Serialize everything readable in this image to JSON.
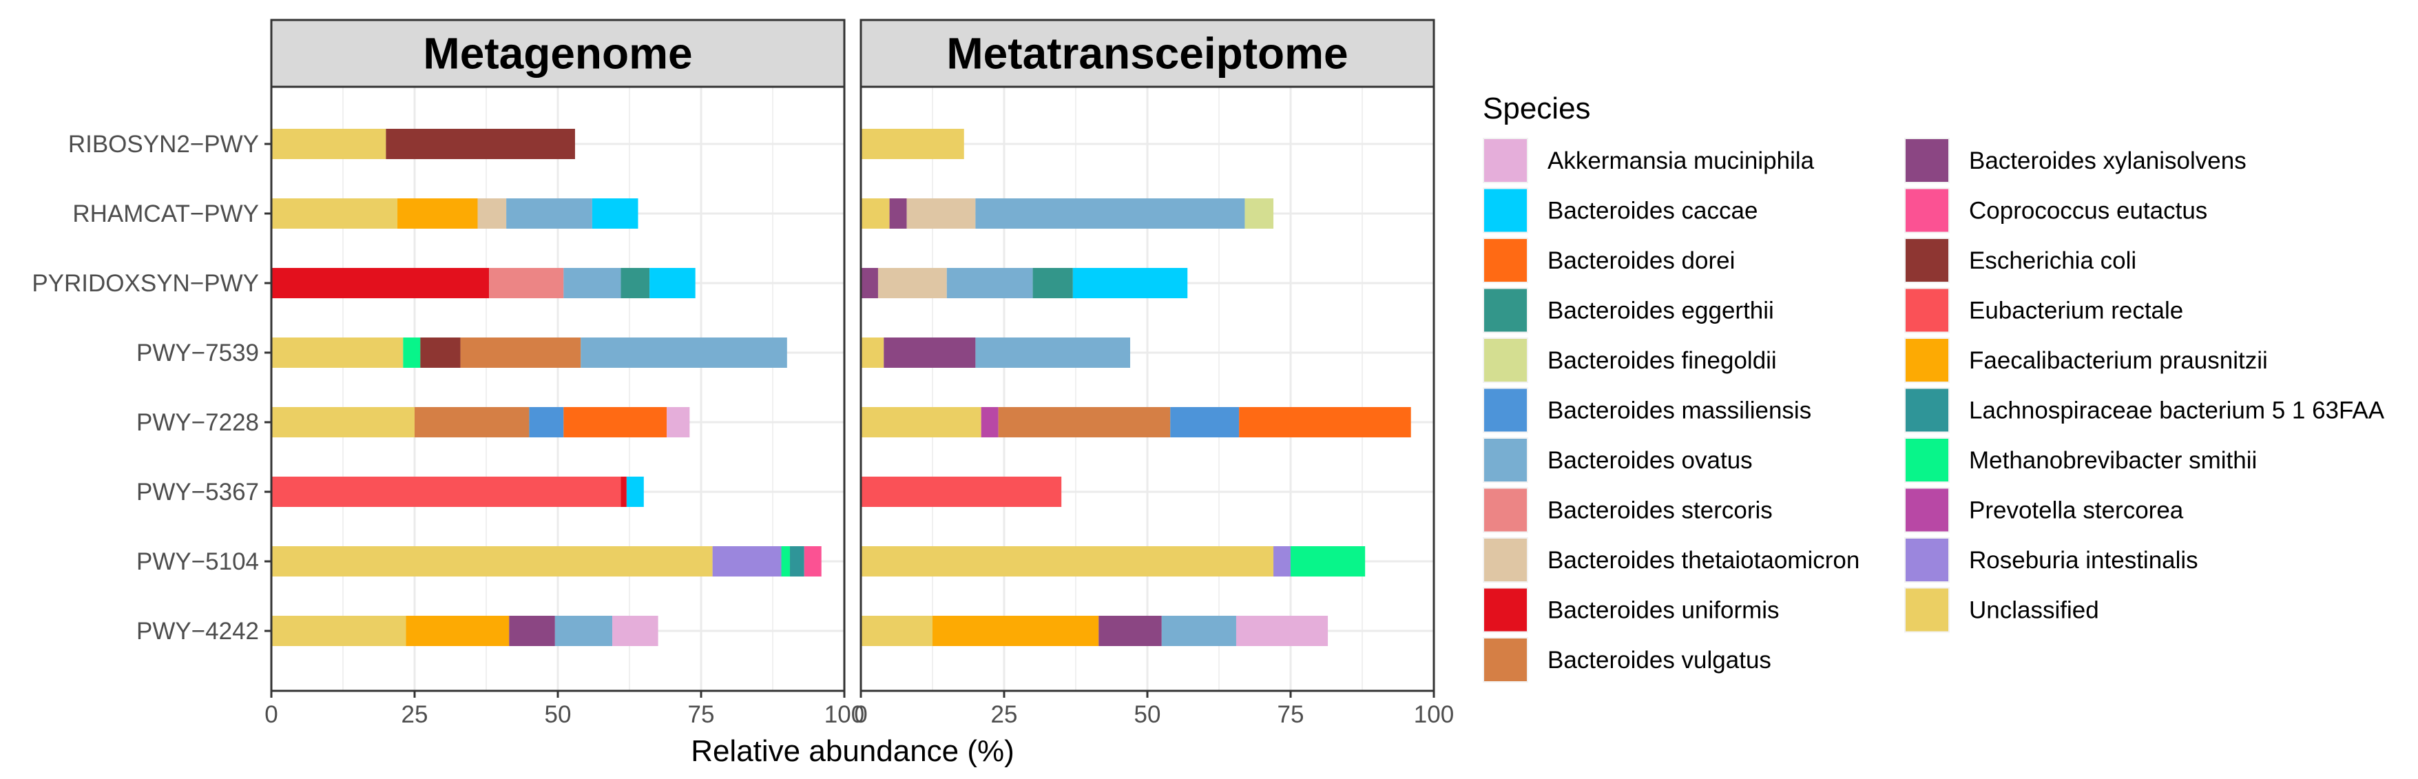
{
  "chart_data": {
    "type": "bar",
    "orientation": "horizontal",
    "stacked": true,
    "xlabel": "Relative abundance (%)",
    "xlim": [
      0,
      100
    ],
    "xticks": [
      0,
      25,
      50,
      75,
      100
    ],
    "xtick_labels": [
      "0",
      "25",
      "50",
      "75",
      "100"
    ],
    "grid": true,
    "legend_title": "Species",
    "legend_position": "right",
    "categories": [
      "RIBOSYN2−PWY",
      "RHAMCAT−PWY",
      "PYRIDOXSYN−PWY",
      "PWY−7539",
      "PWY−7228",
      "PWY−5367",
      "PWY−5104",
      "PWY−4242"
    ],
    "species": [
      {
        "name": "Akkermansia muciniphila",
        "color": "#E5AEDA"
      },
      {
        "name": "Bacteroides caccae",
        "color": "#00CFFF"
      },
      {
        "name": "Bacteroides dorei",
        "color": "#FF6A14"
      },
      {
        "name": "Bacteroides eggerthii",
        "color": "#33968A"
      },
      {
        "name": "Bacteroides finegoldii",
        "color": "#D4DE91"
      },
      {
        "name": "Bacteroides massiliensis",
        "color": "#4D94D9"
      },
      {
        "name": "Bacteroides ovatus",
        "color": "#78AED1"
      },
      {
        "name": "Bacteroides stercoris",
        "color": "#EC8585"
      },
      {
        "name": "Bacteroides thetaiotaomicron",
        "color": "#DFC6A4"
      },
      {
        "name": "Bacteroides uniformis",
        "color": "#E3101D"
      },
      {
        "name": "Bacteroides vulgatus",
        "color": "#D57F45"
      },
      {
        "name": "Bacteroides xylanisolvens",
        "color": "#8B4683"
      },
      {
        "name": "Coprococcus eutactus",
        "color": "#FB5293"
      },
      {
        "name": "Escherichia coli",
        "color": "#8E3632"
      },
      {
        "name": "Eubacterium rectale",
        "color": "#FA5157"
      },
      {
        "name": "Faecalibacterium prausnitzii",
        "color": "#FDAA03"
      },
      {
        "name": "Lachnospiraceae bacterium 5 1 63FAA",
        "color": "#2F9598"
      },
      {
        "name": "Methanobrevibacter smithii",
        "color": "#08F58A"
      },
      {
        "name": "Prevotella stercorea",
        "color": "#B848A5"
      },
      {
        "name": "Roseburia intestinalis",
        "color": "#9B86DD"
      },
      {
        "name": "Unclassified",
        "color": "#EBCF63"
      }
    ],
    "panels": [
      {
        "title": "Metagenome",
        "bars": [
          {
            "category": "RIBOSYN2−PWY",
            "segments": [
              {
                "species": "Unclassified",
                "value": 20
              },
              {
                "species": "Escherichia coli",
                "value": 33
              }
            ]
          },
          {
            "category": "RHAMCAT−PWY",
            "segments": [
              {
                "species": "Unclassified",
                "value": 22
              },
              {
                "species": "Faecalibacterium prausnitzii",
                "value": 14
              },
              {
                "species": "Bacteroides thetaiotaomicron",
                "value": 5
              },
              {
                "species": "Bacteroides ovatus",
                "value": 15
              },
              {
                "species": "Bacteroides caccae",
                "value": 8
              }
            ]
          },
          {
            "category": "PYRIDOXSYN−PWY",
            "segments": [
              {
                "species": "Bacteroides uniformis",
                "value": 38
              },
              {
                "species": "Bacteroides stercoris",
                "value": 13
              },
              {
                "species": "Bacteroides ovatus",
                "value": 10
              },
              {
                "species": "Bacteroides eggerthii",
                "value": 5
              },
              {
                "species": "Bacteroides caccae",
                "value": 8
              }
            ]
          },
          {
            "category": "PWY−7539",
            "segments": [
              {
                "species": "Unclassified",
                "value": 23
              },
              {
                "species": "Methanobrevibacter smithii",
                "value": 3
              },
              {
                "species": "Escherichia coli",
                "value": 7
              },
              {
                "species": "Bacteroides vulgatus",
                "value": 21
              },
              {
                "species": "Bacteroides ovatus",
                "value": 36
              }
            ]
          },
          {
            "category": "PWY−7228",
            "segments": [
              {
                "species": "Unclassified",
                "value": 25
              },
              {
                "species": "Bacteroides vulgatus",
                "value": 20
              },
              {
                "species": "Bacteroides massiliensis",
                "value": 6
              },
              {
                "species": "Bacteroides dorei",
                "value": 18
              },
              {
                "species": "Akkermansia muciniphila",
                "value": 4
              }
            ]
          },
          {
            "category": "PWY−5367",
            "segments": [
              {
                "species": "Eubacterium rectale",
                "value": 61
              },
              {
                "species": "Bacteroides uniformis",
                "value": 1
              },
              {
                "species": "Bacteroides caccae",
                "value": 3
              }
            ]
          },
          {
            "category": "PWY−5104",
            "segments": [
              {
                "species": "Unclassified",
                "value": 77
              },
              {
                "species": "Roseburia intestinalis",
                "value": 12
              },
              {
                "species": "Methanobrevibacter smithii",
                "value": 1.5
              },
              {
                "species": "Lachnospiraceae bacterium 5 1 63FAA",
                "value": 2.5
              },
              {
                "species": "Coprococcus eutactus",
                "value": 3
              }
            ]
          },
          {
            "category": "PWY−4242",
            "segments": [
              {
                "species": "Unclassified",
                "value": 23.5
              },
              {
                "species": "Faecalibacterium prausnitzii",
                "value": 18
              },
              {
                "species": "Bacteroides xylanisolvens",
                "value": 8
              },
              {
                "species": "Bacteroides ovatus",
                "value": 10
              },
              {
                "species": "Akkermansia muciniphila",
                "value": 8
              }
            ]
          }
        ]
      },
      {
        "title": "Metatransceiptome",
        "bars": [
          {
            "category": "RIBOSYN2−PWY",
            "segments": [
              {
                "species": "Unclassified",
                "value": 18
              }
            ]
          },
          {
            "category": "RHAMCAT−PWY",
            "segments": [
              {
                "species": "Unclassified",
                "value": 5
              },
              {
                "species": "Bacteroides xylanisolvens",
                "value": 3
              },
              {
                "species": "Bacteroides thetaiotaomicron",
                "value": 12
              },
              {
                "species": "Bacteroides ovatus",
                "value": 47
              },
              {
                "species": "Bacteroides finegoldii",
                "value": 5
              }
            ]
          },
          {
            "category": "PYRIDOXSYN−PWY",
            "segments": [
              {
                "species": "Bacteroides xylanisolvens",
                "value": 3
              },
              {
                "species": "Bacteroides thetaiotaomicron",
                "value": 12
              },
              {
                "species": "Bacteroides ovatus",
                "value": 15
              },
              {
                "species": "Bacteroides eggerthii",
                "value": 7
              },
              {
                "species": "Bacteroides caccae",
                "value": 20
              }
            ]
          },
          {
            "category": "PWY−7539",
            "segments": [
              {
                "species": "Unclassified",
                "value": 4
              },
              {
                "species": "Bacteroides xylanisolvens",
                "value": 16
              },
              {
                "species": "Bacteroides ovatus",
                "value": 27
              }
            ]
          },
          {
            "category": "PWY−7228",
            "segments": [
              {
                "species": "Unclassified",
                "value": 21
              },
              {
                "species": "Prevotella stercorea",
                "value": 3
              },
              {
                "species": "Bacteroides vulgatus",
                "value": 30
              },
              {
                "species": "Bacteroides massiliensis",
                "value": 12
              },
              {
                "species": "Bacteroides dorei",
                "value": 30
              }
            ]
          },
          {
            "category": "PWY−5367",
            "segments": [
              {
                "species": "Eubacterium rectale",
                "value": 35
              }
            ]
          },
          {
            "category": "PWY−5104",
            "segments": [
              {
                "species": "Unclassified",
                "value": 72
              },
              {
                "species": "Roseburia intestinalis",
                "value": 3
              },
              {
                "species": "Methanobrevibacter smithii",
                "value": 13
              }
            ]
          },
          {
            "category": "PWY−4242",
            "segments": [
              {
                "species": "Unclassified",
                "value": 12.5
              },
              {
                "species": "Faecalibacterium prausnitzii",
                "value": 29
              },
              {
                "species": "Bacteroides xylanisolvens",
                "value": 11
              },
              {
                "species": "Bacteroides ovatus",
                "value": 13
              },
              {
                "species": "Akkermansia muciniphila",
                "value": 16
              }
            ]
          }
        ]
      }
    ]
  }
}
